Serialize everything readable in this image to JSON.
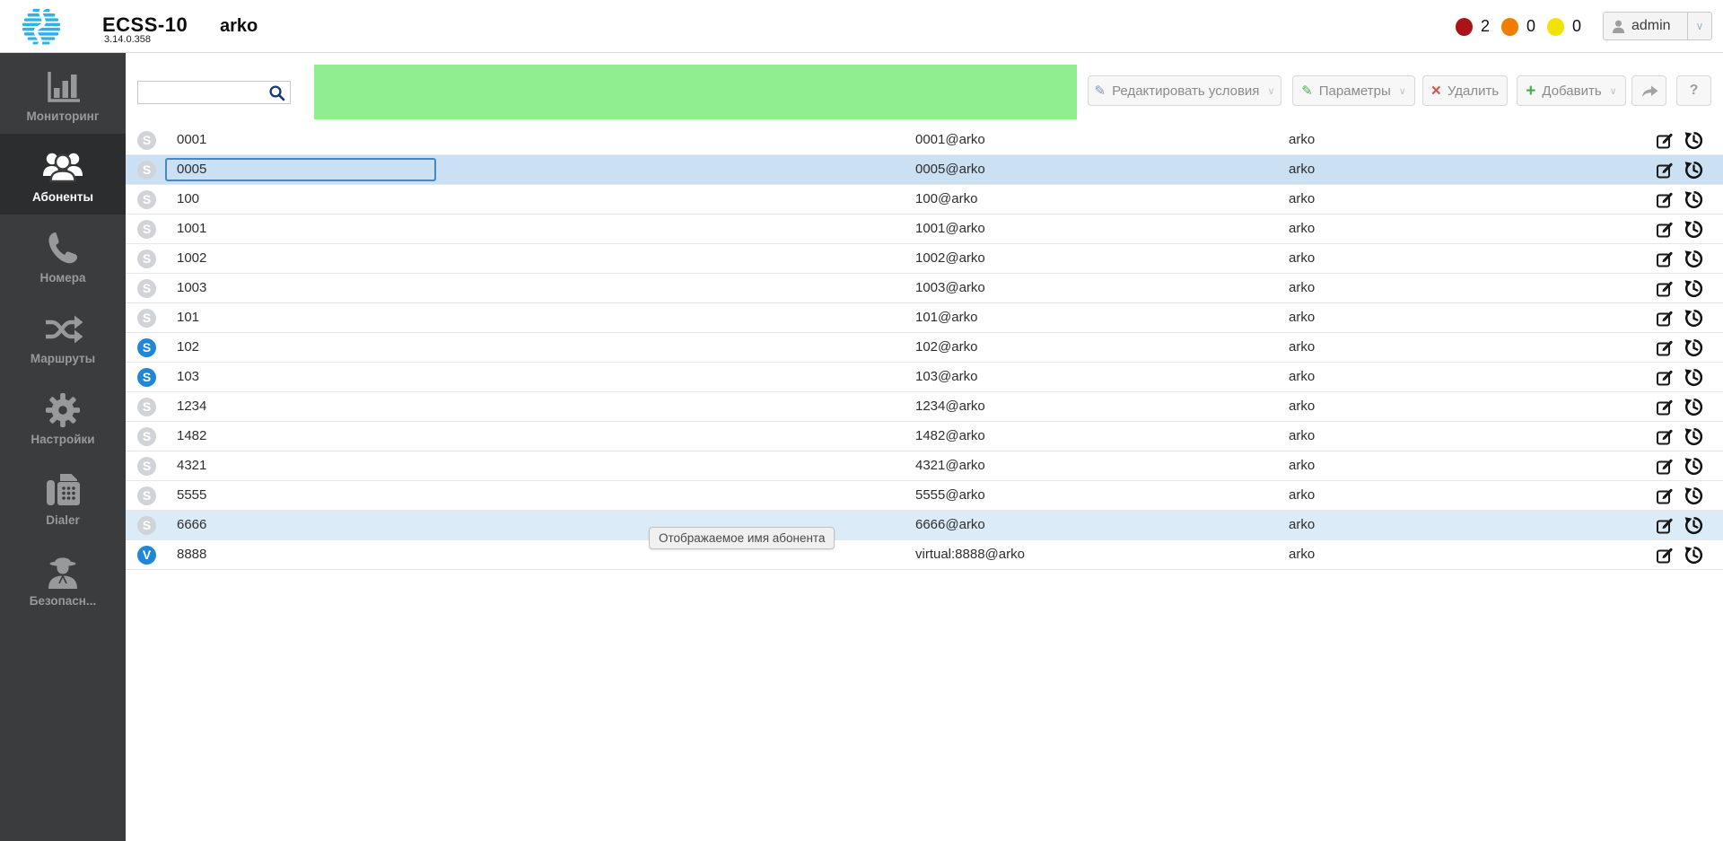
{
  "header": {
    "app_name": "ECSS-10",
    "version": "3.14.0.358",
    "domain": "arko",
    "alarms": [
      {
        "name": "alarm-critical",
        "color": "#a81418",
        "count": "2"
      },
      {
        "name": "alarm-major",
        "color": "#f07d00",
        "count": "0"
      },
      {
        "name": "alarm-minor",
        "color": "#f2e205",
        "count": "0"
      }
    ],
    "user": {
      "name": "admin"
    }
  },
  "sidebar": {
    "items": [
      {
        "name": "monitoring",
        "icon": "bar-chart-icon",
        "label": "Мониторинг",
        "active": false
      },
      {
        "name": "subscribers",
        "icon": "users-icon",
        "label": "Абоненты",
        "active": true
      },
      {
        "name": "numbers",
        "icon": "phone-icon",
        "label": "Номера",
        "active": false
      },
      {
        "name": "routes",
        "icon": "shuffle-icon",
        "label": "Маршруты",
        "active": false
      },
      {
        "name": "settings",
        "icon": "gear-icon",
        "label": "Настройки",
        "active": false
      },
      {
        "name": "dialer",
        "icon": "fax-icon",
        "label": "Dialer",
        "active": false
      },
      {
        "name": "security",
        "icon": "spy-icon",
        "label": "Безопасн...",
        "active": false
      }
    ]
  },
  "toolbar": {
    "search": {
      "value": "",
      "placeholder": ""
    },
    "buttons": {
      "edit_conditions": "Редактировать условия",
      "parameters": "Параметры",
      "delete": "Удалить",
      "add": "Добавить",
      "help": "?"
    }
  },
  "icons": {
    "chevron_down": "∨",
    "delete_x": "×",
    "add_plus": "+",
    "pencil": "✎"
  },
  "table": {
    "rows": [
      {
        "number": "0001",
        "address": "0001@arko",
        "group": "arko",
        "badge": "S",
        "badge_color": "gray",
        "state": "normal"
      },
      {
        "number": "0005",
        "address": "0005@arko",
        "group": "arko",
        "badge": "S",
        "badge_color": "gray",
        "state": "selected"
      },
      {
        "number": "100",
        "address": "100@arko",
        "group": "arko",
        "badge": "S",
        "badge_color": "gray",
        "state": "normal"
      },
      {
        "number": "1001",
        "address": "1001@arko",
        "group": "arko",
        "badge": "S",
        "badge_color": "gray",
        "state": "normal"
      },
      {
        "number": "1002",
        "address": "1002@arko",
        "group": "arko",
        "badge": "S",
        "badge_color": "gray",
        "state": "normal"
      },
      {
        "number": "1003",
        "address": "1003@arko",
        "group": "arko",
        "badge": "S",
        "badge_color": "gray",
        "state": "normal"
      },
      {
        "number": "101",
        "address": "101@arko",
        "group": "arko",
        "badge": "S",
        "badge_color": "gray",
        "state": "normal"
      },
      {
        "number": "102",
        "address": "102@arko",
        "group": "arko",
        "badge": "S",
        "badge_color": "blue",
        "state": "normal"
      },
      {
        "number": "103",
        "address": "103@arko",
        "group": "arko",
        "badge": "S",
        "badge_color": "blue",
        "state": "normal"
      },
      {
        "number": "1234",
        "address": "1234@arko",
        "group": "arko",
        "badge": "S",
        "badge_color": "gray",
        "state": "normal"
      },
      {
        "number": "1482",
        "address": "1482@arko",
        "group": "arko",
        "badge": "S",
        "badge_color": "gray",
        "state": "normal"
      },
      {
        "number": "4321",
        "address": "4321@arko",
        "group": "arko",
        "badge": "S",
        "badge_color": "gray",
        "state": "normal"
      },
      {
        "number": "5555",
        "address": "5555@arko",
        "group": "arko",
        "badge": "S",
        "badge_color": "gray",
        "state": "normal"
      },
      {
        "number": "6666",
        "address": "6666@arko",
        "group": "arko",
        "badge": "S",
        "badge_color": "gray",
        "state": "hovered"
      },
      {
        "number": "8888",
        "address": "virtual:8888@arko",
        "group": "arko",
        "badge": "V",
        "badge_color": "blue",
        "state": "normal"
      }
    ]
  },
  "tooltip": {
    "text": "Отображаемое имя абонента"
  }
}
